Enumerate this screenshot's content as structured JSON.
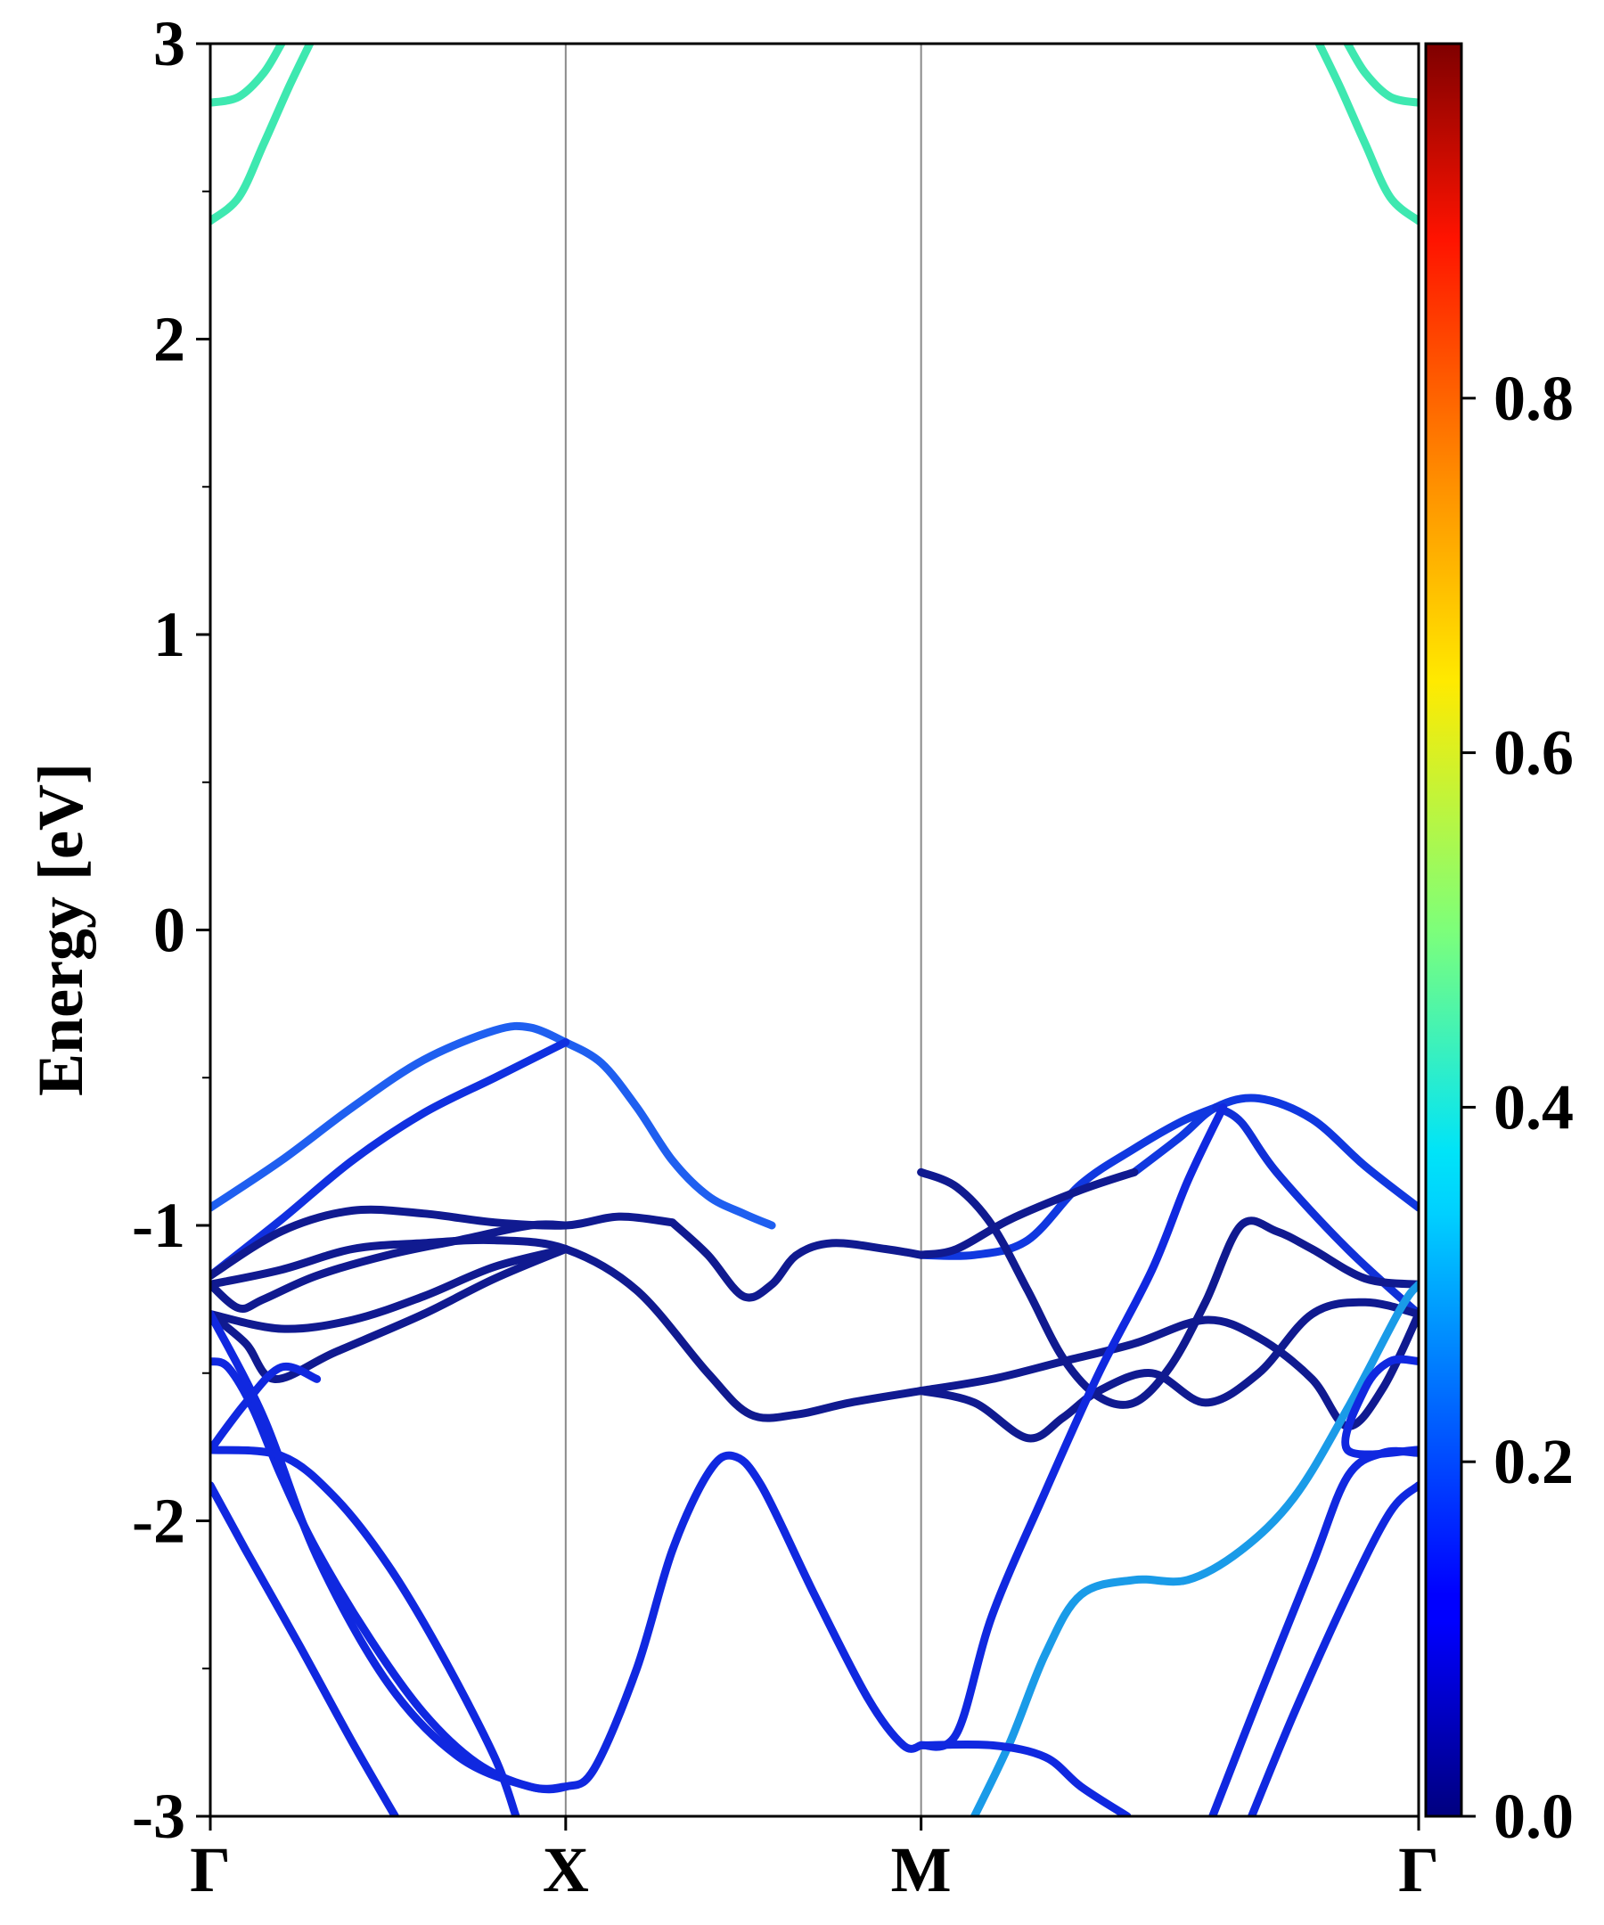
{
  "chart_data": {
    "type": "line",
    "title": "",
    "xlabel": "",
    "ylabel": "Energy [eV]",
    "ylim": [
      -3,
      3
    ],
    "xlim": [
      0,
      3.4
    ],
    "y_ticks": [
      "-3",
      "-2",
      "-1",
      "0",
      "1",
      "2",
      "3"
    ],
    "k_points": [
      {
        "label": "Γ",
        "x": 0
      },
      {
        "label": "X",
        "x": 1
      },
      {
        "label": "M",
        "x": 2
      },
      {
        "label": "Γ",
        "x": 3.4
      }
    ],
    "colorbar": {
      "range": [
        0,
        1
      ],
      "tick_labels": [
        "0.0",
        "0.2",
        "0.4",
        "0.6",
        "0.8"
      ],
      "colormap": "jet"
    },
    "series": [
      {
        "color": "#1f5ff0",
        "points": [
          [
            0,
            -0.94
          ],
          [
            0.2,
            -0.78
          ],
          [
            0.4,
            -0.6
          ],
          [
            0.6,
            -0.44
          ],
          [
            0.8,
            -0.34
          ],
          [
            0.9,
            -0.33
          ],
          [
            1.0,
            -0.38
          ]
        ]
      },
      {
        "color": "#1f5ff0",
        "points": [
          [
            1.0,
            -0.38
          ],
          [
            1.1,
            -0.45
          ],
          [
            1.2,
            -0.6
          ],
          [
            1.3,
            -0.78
          ],
          [
            1.4,
            -0.9
          ],
          [
            1.5,
            -0.96
          ],
          [
            1.58,
            -1.0
          ]
        ]
      },
      {
        "color": "#1030e0",
        "points": [
          [
            0,
            -1.17
          ],
          [
            0.2,
            -0.98
          ],
          [
            0.4,
            -0.78
          ],
          [
            0.6,
            -0.62
          ],
          [
            0.8,
            -0.5
          ],
          [
            1.0,
            -0.38
          ]
        ]
      },
      {
        "color": "#1038e0",
        "points": [
          [
            2.6,
            -0.82
          ],
          [
            2.73,
            -0.7
          ],
          [
            2.83,
            -0.6
          ],
          [
            2.95,
            -0.57
          ],
          [
            3.1,
            -0.64
          ],
          [
            3.25,
            -0.8
          ],
          [
            3.4,
            -0.94
          ]
        ]
      },
      {
        "color": "#1038e0",
        "points": [
          [
            2.0,
            -1.1
          ],
          [
            2.15,
            -1.1
          ],
          [
            2.3,
            -1.05
          ],
          [
            2.45,
            -0.86
          ],
          [
            2.6,
            -0.74
          ],
          [
            2.73,
            -0.65
          ],
          [
            2.83,
            -0.6
          ]
        ]
      },
      {
        "color": "#1030d8",
        "points": [
          [
            2.83,
            -0.6
          ],
          [
            2.9,
            -0.65
          ],
          [
            3.0,
            -0.82
          ],
          [
            3.2,
            -1.08
          ],
          [
            3.4,
            -1.3
          ]
        ]
      },
      {
        "color": "#101a90",
        "points": [
          [
            0,
            -1.17
          ],
          [
            0.2,
            -1.02
          ],
          [
            0.4,
            -0.95
          ],
          [
            0.6,
            -0.96
          ],
          [
            0.8,
            -0.99
          ],
          [
            1.0,
            -1.0
          ],
          [
            1.15,
            -0.97
          ],
          [
            1.3,
            -0.99
          ]
        ]
      },
      {
        "color": "#101a90",
        "points": [
          [
            1.3,
            -0.99
          ],
          [
            1.4,
            -1.1
          ],
          [
            1.5,
            -1.24
          ],
          [
            1.58,
            -1.2
          ],
          [
            1.65,
            -1.1
          ],
          [
            1.75,
            -1.06
          ],
          [
            1.9,
            -1.08
          ],
          [
            2.0,
            -1.1
          ]
        ]
      },
      {
        "color": "#101a90",
        "points": [
          [
            2.0,
            -1.1
          ],
          [
            2.1,
            -1.08
          ],
          [
            2.25,
            -0.98
          ],
          [
            2.45,
            -0.88
          ],
          [
            2.6,
            -0.82
          ]
        ]
      },
      {
        "color": "#101a90",
        "points": [
          [
            0,
            -1.2
          ],
          [
            0.2,
            -1.15
          ],
          [
            0.4,
            -1.08
          ],
          [
            0.6,
            -1.06
          ],
          [
            0.8,
            -1.05
          ],
          [
            1.0,
            -1.08
          ],
          [
            1.2,
            -1.22
          ],
          [
            1.4,
            -1.5
          ],
          [
            1.52,
            -1.64
          ],
          [
            1.65,
            -1.64
          ],
          [
            1.8,
            -1.6
          ],
          [
            2.0,
            -1.56
          ]
        ]
      },
      {
        "color": "#101a90",
        "points": [
          [
            0,
            -1.3
          ],
          [
            0.2,
            -1.35
          ],
          [
            0.4,
            -1.32
          ],
          [
            0.6,
            -1.24
          ],
          [
            0.8,
            -1.14
          ],
          [
            1.0,
            -1.08
          ]
        ]
      },
      {
        "color": "#101a90",
        "points": [
          [
            0,
            -1.2
          ],
          [
            0.08,
            -1.28
          ],
          [
            0.15,
            -1.25
          ],
          [
            0.3,
            -1.17
          ],
          [
            0.5,
            -1.1
          ],
          [
            0.7,
            -1.05
          ],
          [
            0.9,
            -1.0
          ],
          [
            1.0,
            -1.0
          ]
        ]
      },
      {
        "color": "#101a90",
        "points": [
          [
            0,
            -1.3
          ],
          [
            0.1,
            -1.4
          ],
          [
            0.18,
            -1.52
          ],
          [
            0.35,
            -1.43
          ],
          [
            0.6,
            -1.3
          ],
          [
            0.8,
            -1.18
          ],
          [
            1.0,
            -1.08
          ]
        ]
      },
      {
        "color": "#101a90",
        "points": [
          [
            2.0,
            -0.82
          ],
          [
            2.1,
            -0.87
          ],
          [
            2.2,
            -1.0
          ],
          [
            2.3,
            -1.22
          ],
          [
            2.4,
            -1.45
          ],
          [
            2.5,
            -1.58
          ],
          [
            2.6,
            -1.6
          ],
          [
            2.7,
            -1.48
          ],
          [
            2.8,
            -1.26
          ],
          [
            2.9,
            -1.0
          ],
          [
            3.0,
            -1.02
          ],
          [
            3.1,
            -1.08
          ],
          [
            3.25,
            -1.18
          ],
          [
            3.4,
            -1.2
          ]
        ]
      },
      {
        "color": "#101a90",
        "points": [
          [
            2.0,
            -1.56
          ],
          [
            2.15,
            -1.6
          ],
          [
            2.3,
            -1.72
          ],
          [
            2.4,
            -1.65
          ],
          [
            2.5,
            -1.56
          ],
          [
            2.65,
            -1.5
          ],
          [
            2.8,
            -1.6
          ],
          [
            2.95,
            -1.5
          ],
          [
            3.1,
            -1.3
          ],
          [
            3.25,
            -1.26
          ],
          [
            3.4,
            -1.3
          ]
        ]
      },
      {
        "color": "#101a90",
        "points": [
          [
            2.0,
            -1.56
          ],
          [
            2.2,
            -1.52
          ],
          [
            2.4,
            -1.46
          ],
          [
            2.6,
            -1.4
          ],
          [
            2.8,
            -1.32
          ],
          [
            2.95,
            -1.38
          ],
          [
            3.1,
            -1.52
          ],
          [
            3.2,
            -1.68
          ],
          [
            3.3,
            -1.55
          ],
          [
            3.4,
            -1.3
          ]
        ]
      },
      {
        "color": "#1028e0",
        "points": [
          [
            0,
            -1.46
          ],
          [
            0.05,
            -1.48
          ],
          [
            0.12,
            -1.62
          ],
          [
            0.2,
            -1.85
          ],
          [
            0.3,
            -2.1
          ],
          [
            0.45,
            -2.4
          ],
          [
            0.6,
            -2.65
          ],
          [
            0.75,
            -2.82
          ],
          [
            0.9,
            -2.9
          ],
          [
            1.0,
            -2.9
          ],
          [
            1.08,
            -2.84
          ],
          [
            1.2,
            -2.5
          ],
          [
            1.3,
            -2.1
          ],
          [
            1.4,
            -1.84
          ],
          [
            1.47,
            -1.78
          ],
          [
            1.55,
            -1.88
          ],
          [
            1.7,
            -2.25
          ],
          [
            1.85,
            -2.6
          ],
          [
            1.95,
            -2.76
          ],
          [
            2.0,
            -2.76
          ]
        ]
      },
      {
        "color": "#1028e0",
        "points": [
          [
            0,
            -1.76
          ],
          [
            0.1,
            -1.6
          ],
          [
            0.2,
            -1.48
          ],
          [
            0.3,
            -1.52
          ]
        ]
      },
      {
        "color": "#1028e0",
        "points": [
          [
            0,
            -1.76
          ],
          [
            0.2,
            -1.78
          ],
          [
            0.35,
            -1.92
          ],
          [
            0.5,
            -2.15
          ],
          [
            0.65,
            -2.45
          ],
          [
            0.8,
            -2.8
          ],
          [
            0.86,
            -3.0
          ]
        ]
      },
      {
        "color": "#1028e0",
        "points": [
          [
            0,
            -1.88
          ],
          [
            0.1,
            -2.1
          ],
          [
            0.25,
            -2.42
          ],
          [
            0.4,
            -2.75
          ],
          [
            0.52,
            -3.0
          ]
        ]
      },
      {
        "color": "#1028e0",
        "points": [
          [
            0,
            -1.3
          ],
          [
            0.15,
            -1.65
          ],
          [
            0.3,
            -2.12
          ],
          [
            0.5,
            -2.55
          ],
          [
            0.7,
            -2.8
          ],
          [
            0.9,
            -2.9
          ],
          [
            1.0,
            -2.9
          ]
        ]
      },
      {
        "color": "#1028e0",
        "points": [
          [
            2.0,
            -2.76
          ],
          [
            2.1,
            -2.72
          ],
          [
            2.2,
            -2.32
          ],
          [
            2.35,
            -1.9
          ],
          [
            2.5,
            -1.5
          ],
          [
            2.65,
            -1.15
          ],
          [
            2.75,
            -0.85
          ],
          [
            2.85,
            -0.6
          ]
        ]
      },
      {
        "color": "#1a9be8",
        "points": [
          [
            2.15,
            -3.0
          ],
          [
            2.25,
            -2.75
          ],
          [
            2.35,
            -2.45
          ],
          [
            2.45,
            -2.25
          ],
          [
            2.6,
            -2.2
          ],
          [
            2.75,
            -2.2
          ],
          [
            2.9,
            -2.1
          ],
          [
            3.05,
            -1.92
          ],
          [
            3.2,
            -1.62
          ],
          [
            3.35,
            -1.28
          ],
          [
            3.4,
            -1.2
          ]
        ]
      },
      {
        "color": "#1028e0",
        "points": [
          [
            2.0,
            -2.76
          ],
          [
            2.2,
            -2.76
          ],
          [
            2.35,
            -2.8
          ],
          [
            2.45,
            -2.9
          ],
          [
            2.58,
            -3.0
          ]
        ]
      },
      {
        "color": "#1028e0",
        "points": [
          [
            2.82,
            -3.0
          ],
          [
            2.95,
            -2.6
          ],
          [
            3.1,
            -2.15
          ],
          [
            3.2,
            -1.85
          ],
          [
            3.3,
            -1.77
          ],
          [
            3.4,
            -1.77
          ]
        ]
      },
      {
        "color": "#1028e0",
        "points": [
          [
            2.93,
            -3.0
          ],
          [
            3.05,
            -2.65
          ],
          [
            3.2,
            -2.25
          ],
          [
            3.32,
            -1.97
          ],
          [
            3.4,
            -1.88
          ]
        ]
      },
      {
        "color": "#1028e0",
        "points": [
          [
            3.4,
            -1.46
          ],
          [
            3.32,
            -1.46
          ],
          [
            3.25,
            -1.55
          ],
          [
            3.2,
            -1.76
          ],
          [
            3.4,
            -1.76
          ]
        ]
      },
      {
        "color": "#3ee8b0",
        "points": [
          [
            0,
            2.4
          ],
          [
            0.08,
            2.48
          ],
          [
            0.15,
            2.66
          ],
          [
            0.22,
            2.85
          ],
          [
            0.28,
            3.0
          ]
        ]
      },
      {
        "color": "#3ee8b0",
        "points": [
          [
            0,
            2.8
          ],
          [
            0.08,
            2.82
          ],
          [
            0.15,
            2.9
          ],
          [
            0.2,
            3.0
          ]
        ]
      },
      {
        "color": "#3ee8b0",
        "points": [
          [
            3.4,
            2.4
          ],
          [
            3.32,
            2.48
          ],
          [
            3.25,
            2.66
          ],
          [
            3.18,
            2.85
          ],
          [
            3.12,
            3.0
          ]
        ]
      },
      {
        "color": "#3ee8b0",
        "points": [
          [
            3.4,
            2.8
          ],
          [
            3.32,
            2.82
          ],
          [
            3.25,
            2.9
          ],
          [
            3.2,
            3.0
          ]
        ]
      }
    ]
  }
}
